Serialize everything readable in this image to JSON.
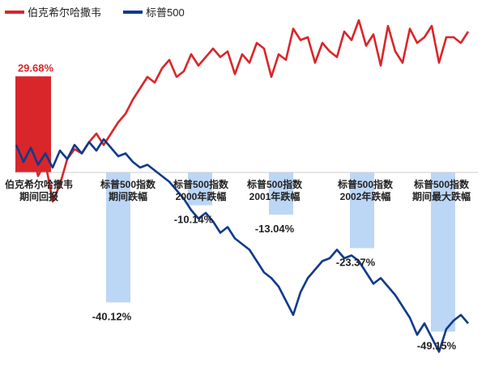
{
  "colors": {
    "brk": "#d9262a",
    "spx": "#103a8a",
    "bar_red": "#d9262a",
    "bar_blue": "#bcd6f6",
    "axis": "#cccccc"
  },
  "chart_data": {
    "type": "bar+line",
    "title": "",
    "xlabel": "",
    "ylabel": "",
    "grid": false,
    "legend": {
      "position": "top-left"
    },
    "series": [
      {
        "name": "伯克希尔哈撒韦",
        "color": "#d9262a"
      },
      {
        "name": "标普500",
        "color": "#103a8a"
      }
    ],
    "categories": [
      "伯克希尔哈撒韦\n期间回报",
      "标普500指数\n期间跌幅",
      "标普500指数\n2000年跌幅",
      "标普500指数\n2001年跌幅",
      "标普500指数\n2002年跌幅",
      "标普500指数\n期间最大跌幅"
    ],
    "values": [
      29.68,
      -40.12,
      -10.14,
      -13.04,
      -23.37,
      -49.15
    ],
    "value_labels": [
      "29.68%",
      "-40.12%",
      "-10.14%",
      "-13.04%",
      "-23.37%",
      "-49.15%"
    ],
    "ylim": [
      -55,
      38
    ],
    "lines": {
      "brk": [
        0,
        -6,
        8,
        -14,
        -4,
        -32,
        -20,
        -2,
        5,
        2,
        10,
        16,
        8,
        16,
        24,
        30,
        40,
        48,
        56,
        52,
        62,
        68,
        56,
        60,
        72,
        64,
        70,
        76,
        70,
        74,
        58,
        72,
        66,
        80,
        76,
        56,
        72,
        68,
        90,
        82,
        84,
        66,
        80,
        74,
        70,
        88,
        82,
        96,
        78,
        86,
        64,
        92,
        74,
        66,
        90,
        80,
        84,
        92,
        66,
        84,
        84,
        80,
        88
      ],
      "spx": [
        8,
        -4,
        6,
        -6,
        2,
        -8,
        4,
        -2,
        8,
        2,
        10,
        4,
        12,
        6,
        0,
        2,
        -4,
        -8,
        -6,
        -10,
        -14,
        -18,
        -24,
        -30,
        -38,
        -44,
        -40,
        -46,
        -54,
        -50,
        -58,
        -62,
        -66,
        -74,
        -82,
        -86,
        -92,
        -102,
        -112,
        -96,
        -86,
        -80,
        -74,
        -72,
        -66,
        -72,
        -70,
        -74,
        -82,
        -90,
        -86,
        -92,
        -98,
        -106,
        -114,
        -126,
        -118,
        -128,
        -138,
        -122,
        -116,
        -112,
        -118
      ]
    }
  }
}
